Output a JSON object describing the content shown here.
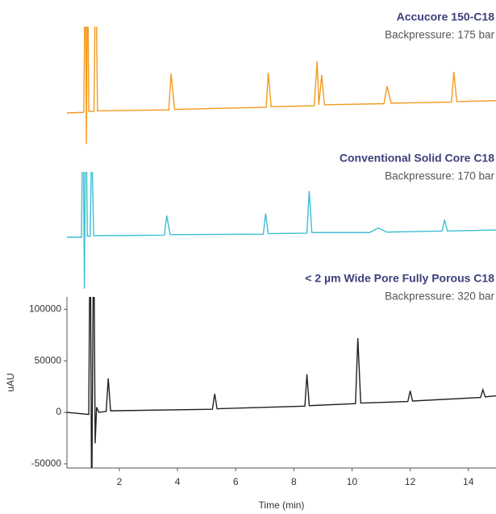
{
  "chart_data": [
    {
      "type": "line",
      "title": "Accucore 150-C18",
      "subtitle": "Backpressure: 175 bar",
      "color": "#f39a1e",
      "x": [
        0.2,
        0.78,
        0.83,
        0.87,
        0.91,
        0.95,
        1.13,
        1.19,
        1.25,
        3.7,
        3.78,
        3.9,
        7.05,
        7.12,
        7.22,
        8.7,
        8.8,
        8.86,
        8.96,
        9.05,
        11.1,
        11.2,
        11.35,
        13.42,
        13.5,
        13.6,
        14.95
      ],
      "values": [
        0,
        600,
        160000,
        -30000,
        160000,
        1500,
        1500,
        160000,
        2000,
        3000,
        38000,
        3500,
        5500,
        39000,
        6000,
        7000,
        50000,
        8000,
        37000,
        8000,
        9000,
        26000,
        9500,
        10500,
        40000,
        11000,
        12000
      ]
    },
    {
      "type": "line",
      "title": "Conventional Solid Core C18",
      "subtitle": "Backpressure: 170 bar",
      "color": "#3dbfd3",
      "x": [
        0.2,
        0.7,
        0.75,
        0.8,
        0.85,
        0.9,
        1.0,
        1.05,
        1.12,
        3.55,
        3.63,
        3.75,
        6.95,
        7.03,
        7.12,
        8.45,
        8.53,
        8.62,
        10.6,
        10.9,
        11.2,
        13.1,
        13.18,
        13.28,
        14.95
      ],
      "values": [
        0,
        0,
        150000,
        -50000,
        150000,
        1000,
        1000,
        95000,
        1500,
        2000,
        21000,
        2500,
        3000,
        23000,
        3500,
        4000,
        45000,
        4500,
        4500,
        9000,
        5000,
        6000,
        17000,
        6000,
        7000
      ]
    },
    {
      "type": "line",
      "title": "< 2 µm Wide Pore Fully Porous C18",
      "subtitle": "Backpressure: 320 bar",
      "color": "#231f20",
      "x": [
        0.2,
        0.95,
        1.0,
        1.05,
        1.12,
        1.17,
        1.22,
        1.3,
        1.55,
        1.62,
        1.7,
        5.2,
        5.28,
        5.36,
        8.38,
        8.45,
        8.53,
        10.12,
        10.2,
        10.3,
        11.92,
        12.0,
        12.08,
        14.42,
        14.5,
        14.58,
        14.95
      ],
      "values": [
        0,
        -2000,
        200000,
        -100000,
        200000,
        -30000,
        5000,
        0,
        1000,
        33000,
        1500,
        3000,
        18000,
        3500,
        6000,
        37000,
        6500,
        8500,
        72000,
        9000,
        10500,
        21000,
        11000,
        14500,
        22000,
        15000,
        16000
      ],
      "x_label": "Time (min)",
      "y_label": "uAU",
      "xlim": [
        0.2,
        14.95
      ],
      "xticks": [
        2,
        4,
        6,
        8,
        10,
        12,
        14
      ],
      "ylim": [
        -54000,
        112000
      ],
      "yticks": [
        -50000,
        0,
        50000,
        100000
      ]
    }
  ]
}
